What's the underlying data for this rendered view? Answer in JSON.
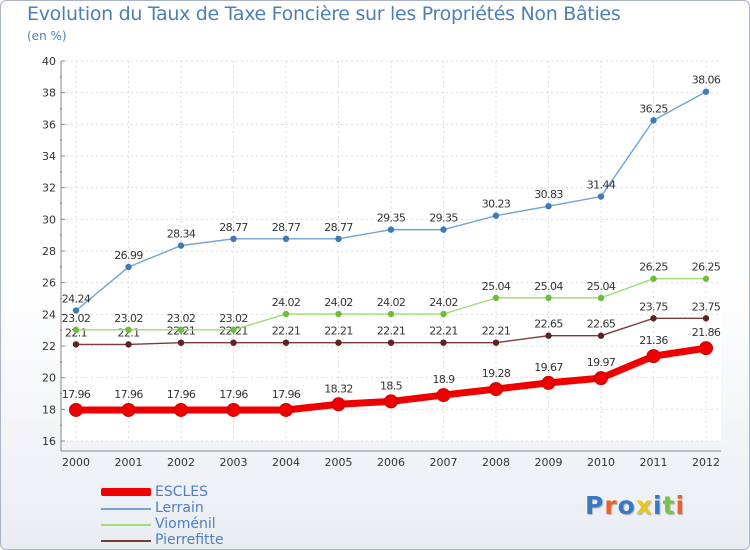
{
  "title": "Evolution du Taux de Taxe Foncière sur les Propriétés Non Bâties",
  "unit_label": "(en %)",
  "logo": {
    "text": "Proxiti",
    "letter_colors": [
      "#3b78c4",
      "#e8622a",
      "#3b78c4",
      "#e8c51f",
      "#3b78c4",
      "#7cc242",
      "#e8622a"
    ]
  },
  "chart_data": {
    "type": "line",
    "title": "Evolution du Taux de Taxe Foncière sur les Propriétés Non Bâties",
    "ylabel": "(en %)",
    "xlabel": "",
    "ylim": [
      16,
      40
    ],
    "yticks": [
      16,
      18,
      20,
      22,
      24,
      26,
      28,
      30,
      32,
      34,
      36,
      38,
      40
    ],
    "grid": true,
    "legend_position": "bottom-left",
    "categories": [
      "2000",
      "2001",
      "2002",
      "2003",
      "2004",
      "2005",
      "2006",
      "2007",
      "2008",
      "2009",
      "2010",
      "2011",
      "2012"
    ],
    "series": [
      {
        "name": "ESCLES",
        "color": "#ee0000",
        "emphasis": true,
        "values": [
          17.96,
          17.96,
          17.96,
          17.96,
          17.96,
          18.32,
          18.5,
          18.9,
          19.28,
          19.67,
          19.97,
          21.36,
          21.86
        ]
      },
      {
        "name": "Lerrain",
        "color": "#6fa3d6",
        "point_color": "#3f79b8",
        "values": [
          24.24,
          26.99,
          28.34,
          28.77,
          28.77,
          28.77,
          29.35,
          29.35,
          30.23,
          30.83,
          31.44,
          36.25,
          38.06
        ]
      },
      {
        "name": "Vioménil",
        "color": "#9fdc73",
        "point_color": "#6bbd3a",
        "values": [
          23.02,
          23.02,
          23.02,
          23.02,
          24.02,
          24.02,
          24.02,
          24.02,
          25.04,
          25.04,
          25.04,
          26.25,
          26.25
        ]
      },
      {
        "name": "Pierrefitte",
        "color": "#7a3b3b",
        "point_color": "#5e2424",
        "values": [
          22.1,
          22.1,
          22.21,
          22.21,
          22.21,
          22.21,
          22.21,
          22.21,
          22.21,
          22.65,
          22.65,
          23.75,
          23.75
        ]
      }
    ]
  }
}
